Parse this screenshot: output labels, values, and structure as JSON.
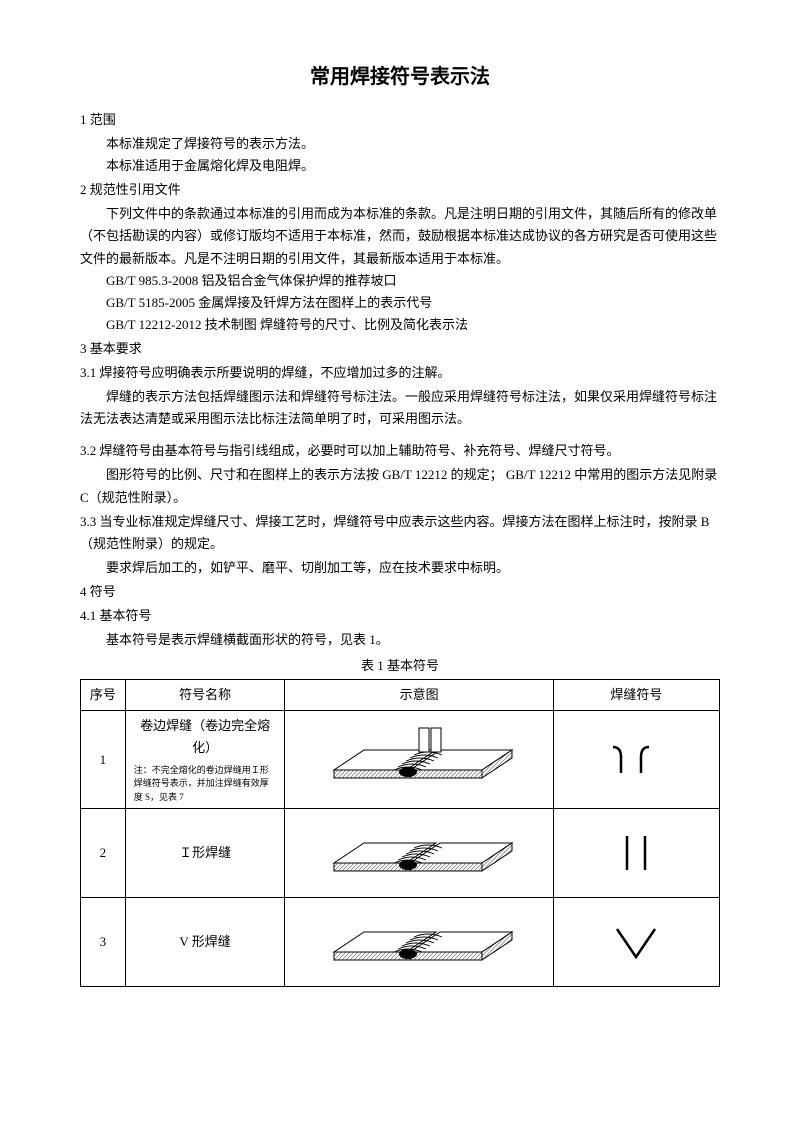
{
  "title": "常用焊接符号表示法",
  "sections": {
    "s1_head": "1  范围",
    "s1_p1": "本标准规定了焊接符号的表示方法。",
    "s1_p2": "本标准适用于金属熔化焊及电阻焊。",
    "s2_head": "2  规范性引用文件",
    "s2_p1": "下列文件中的条款通过本标准的引用而成为本标准的条款。凡是注明日期的引用文件，其随后所有的修改单（不包括勘误的内容）或修订版均不适用于本标准，然而，鼓励根据本标准达成协议的各方研究是否可使用这些文件的最新版本。凡是不注明日期的引用文件，其最新版本适用于本标准。",
    "refs": [
      "GB/T 985.3-2008    铝及铝合金气体保护焊的推荐坡口",
      "GB/T 5185-2005    金属焊接及钎焊方法在图样上的表示代号",
      "GB/T 12212-2012    技术制图   焊缝符号的尺寸、比例及简化表示法"
    ],
    "s3_head": "3  基本要求",
    "s3_1": "3.1    焊接符号应明确表示所要说明的焊缝，不应增加过多的注解。",
    "s3_1b": "焊缝的表示方法包括焊缝图示法和焊缝符号标注法。一般应采用焊缝符号标注法，如果仅采用焊缝符号标注法无法表达清楚或采用图示法比标注法简单明了时，可采用图示法。",
    "s3_2": "3.2    焊缝符号由基本符号与指引线组成，必要时可以加上辅助符号、补充符号、焊缝尺寸符号。",
    "s3_2b": "图形符号的比例、尺寸和在图样上的表示方法按 GB/T 12212 的规定；  GB/T 12212 中常用的图示方法见附录 C（规范性附录）。",
    "s3_3": "3.3    当专业标准规定焊缝尺寸、焊接工艺时，焊缝符号中应表示这些内容。焊接方法在图样上标注时，按附录 B（规范性附录）的规定。",
    "s3_3b": "要求焊后加工的，如铲平、磨平、切削加工等，应在技术要求中标明。",
    "s4_head": "4  符号",
    "s4_1": "4.1 基本符号",
    "s4_1b": "基本符号是表示焊缝横截面形状的符号，见表 1。",
    "table_caption": "表 1 基本符号"
  },
  "table": {
    "headers": [
      "序号",
      "符号名称",
      "示意图",
      "焊缝符号"
    ],
    "rows": [
      {
        "seq": "1",
        "name": "卷边焊缝（卷边完全熔化）",
        "note": "注：不完全熔化的卷边焊缝用Ｉ形焊缝符号表示，并加注焊缝有效厚度 S，见表 7",
        "diagram": "flanged",
        "symbol": "flanged"
      },
      {
        "seq": "2",
        "name": "Ｉ形焊缝",
        "note": "",
        "diagram": "square",
        "symbol": "square"
      },
      {
        "seq": "3",
        "name": "V 形焊缝",
        "note": "",
        "diagram": "vgroove",
        "symbol": "vgroove"
      }
    ]
  },
  "colors": {
    "stroke": "#000000",
    "fill_dark": "#000000",
    "fill_hatch": "#b0b0b0",
    "fill_light": "#ffffff"
  }
}
